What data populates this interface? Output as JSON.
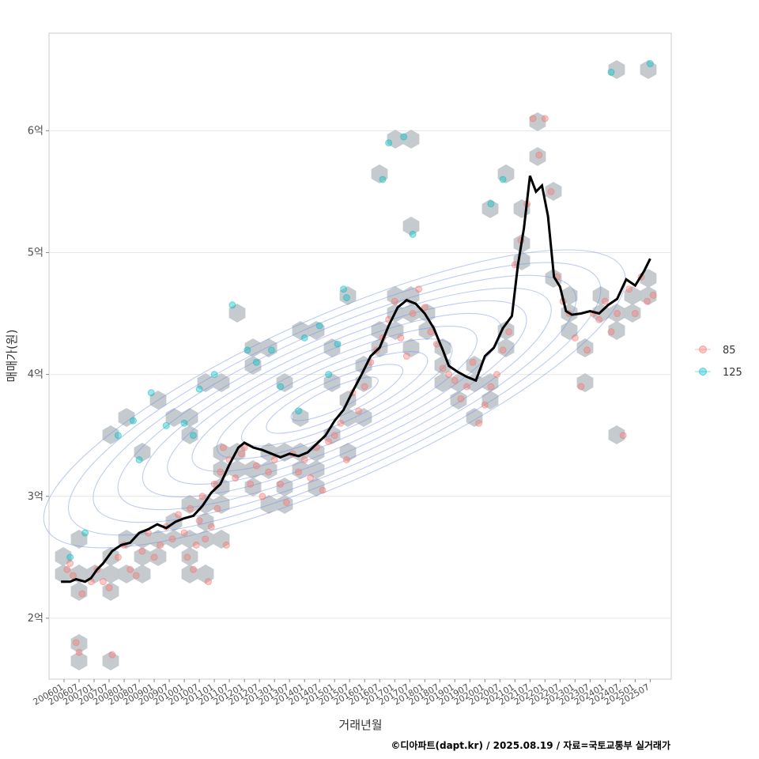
{
  "chart_data": {
    "type": "scatter",
    "xlabel": "거래년월",
    "ylabel": "매매가(원)",
    "caption": "©디아파트(dapt.kr) / 2025.08.19 / 자료=국토교통부 실거래가",
    "ylim": [
      1.5,
      6.8
    ],
    "xlim": [
      2005.5,
      2026.2
    ],
    "y_ticks": [
      {
        "v": 2,
        "label": "2억"
      },
      {
        "v": 3,
        "label": "3억"
      },
      {
        "v": 4,
        "label": "4억"
      },
      {
        "v": 5,
        "label": "5억"
      },
      {
        "v": 6,
        "label": "6억"
      }
    ],
    "x_ticks": [
      "200601",
      "200607",
      "200701",
      "200707",
      "200801",
      "200807",
      "200901",
      "200907",
      "201001",
      "201007",
      "201101",
      "201107",
      "201201",
      "201207",
      "201301",
      "201307",
      "201401",
      "201407",
      "201501",
      "201507",
      "201601",
      "201607",
      "201701",
      "201707",
      "201801",
      "201807",
      "201901",
      "201907",
      "202001",
      "202007",
      "202101",
      "202107",
      "202201",
      "202207",
      "202301",
      "202307",
      "202401",
      "202407",
      "202501",
      "202507"
    ],
    "grid": true,
    "legend_position": "right",
    "series": [
      {
        "name": "85",
        "color": "#F8766D",
        "points": [
          [
            2006.1,
            2.4
          ],
          [
            2006.2,
            2.45
          ],
          [
            2006.3,
            2.35
          ],
          [
            2006.4,
            1.8
          ],
          [
            2006.5,
            1.72
          ],
          [
            2006.6,
            2.2
          ],
          [
            2006.9,
            2.3
          ],
          [
            2007.1,
            2.4
          ],
          [
            2007.3,
            2.3
          ],
          [
            2007.5,
            2.25
          ],
          [
            2007.6,
            1.7
          ],
          [
            2007.8,
            2.5
          ],
          [
            2008.0,
            2.6
          ],
          [
            2008.2,
            2.4
          ],
          [
            2008.4,
            2.35
          ],
          [
            2008.6,
            2.55
          ],
          [
            2008.8,
            2.7
          ],
          [
            2009.0,
            2.5
          ],
          [
            2009.2,
            2.6
          ],
          [
            2009.4,
            2.75
          ],
          [
            2009.6,
            2.65
          ],
          [
            2009.8,
            2.85
          ],
          [
            2010.0,
            2.7
          ],
          [
            2010.1,
            2.5
          ],
          [
            2010.2,
            2.9
          ],
          [
            2010.3,
            2.4
          ],
          [
            2010.4,
            2.6
          ],
          [
            2010.5,
            2.8
          ],
          [
            2010.6,
            3.0
          ],
          [
            2010.7,
            2.65
          ],
          [
            2010.8,
            2.3
          ],
          [
            2010.9,
            2.75
          ],
          [
            2011.0,
            3.1
          ],
          [
            2011.1,
            2.9
          ],
          [
            2011.2,
            3.2
          ],
          [
            2011.3,
            3.4
          ],
          [
            2011.4,
            2.6
          ],
          [
            2011.5,
            3.3
          ],
          [
            2011.7,
            3.15
          ],
          [
            2011.9,
            3.35
          ],
          [
            2012.0,
            3.4
          ],
          [
            2012.2,
            3.1
          ],
          [
            2012.4,
            3.25
          ],
          [
            2012.6,
            3.0
          ],
          [
            2012.8,
            3.2
          ],
          [
            2013.0,
            3.3
          ],
          [
            2013.2,
            3.1
          ],
          [
            2013.4,
            2.95
          ],
          [
            2013.6,
            3.35
          ],
          [
            2013.8,
            3.2
          ],
          [
            2014.0,
            3.3
          ],
          [
            2014.2,
            3.15
          ],
          [
            2014.4,
            3.4
          ],
          [
            2014.6,
            3.05
          ],
          [
            2014.8,
            3.45
          ],
          [
            2015.0,
            3.5
          ],
          [
            2015.2,
            3.6
          ],
          [
            2015.4,
            3.3
          ],
          [
            2015.6,
            3.85
          ],
          [
            2015.8,
            3.7
          ],
          [
            2016.0,
            3.9
          ],
          [
            2016.2,
            4.1
          ],
          [
            2016.4,
            4.2
          ],
          [
            2016.6,
            4.3
          ],
          [
            2016.8,
            4.45
          ],
          [
            2017.0,
            4.6
          ],
          [
            2017.2,
            4.3
          ],
          [
            2017.4,
            4.15
          ],
          [
            2017.6,
            4.5
          ],
          [
            2017.8,
            4.7
          ],
          [
            2018.0,
            4.55
          ],
          [
            2018.2,
            4.35
          ],
          [
            2018.4,
            4.25
          ],
          [
            2018.6,
            4.05
          ],
          [
            2018.8,
            4.0
          ],
          [
            2019.0,
            3.95
          ],
          [
            2019.2,
            3.8
          ],
          [
            2019.4,
            3.9
          ],
          [
            2019.6,
            4.1
          ],
          [
            2019.8,
            3.6
          ],
          [
            2020.0,
            3.75
          ],
          [
            2020.2,
            3.9
          ],
          [
            2020.4,
            4.0
          ],
          [
            2020.6,
            4.2
          ],
          [
            2020.8,
            4.35
          ],
          [
            2021.0,
            4.9
          ],
          [
            2021.2,
            5.1
          ],
          [
            2021.4,
            5.4
          ],
          [
            2021.6,
            6.1
          ],
          [
            2021.8,
            5.8
          ],
          [
            2022.0,
            6.1
          ],
          [
            2022.2,
            5.5
          ],
          [
            2022.4,
            4.8
          ],
          [
            2022.6,
            4.6
          ],
          [
            2022.8,
            4.5
          ],
          [
            2023.0,
            4.3
          ],
          [
            2023.2,
            3.9
          ],
          [
            2023.4,
            4.2
          ],
          [
            2023.6,
            4.5
          ],
          [
            2023.8,
            4.45
          ],
          [
            2024.0,
            4.6
          ],
          [
            2024.2,
            4.35
          ],
          [
            2024.4,
            4.5
          ],
          [
            2024.6,
            3.5
          ],
          [
            2024.8,
            4.7
          ],
          [
            2025.0,
            4.5
          ],
          [
            2025.2,
            4.8
          ],
          [
            2025.4,
            4.6
          ],
          [
            2025.6,
            4.65
          ]
        ]
      },
      {
        "name": "125",
        "color": "#00BFC4",
        "points": [
          [
            2006.2,
            2.5
          ],
          [
            2006.7,
            2.7
          ],
          [
            2007.8,
            3.5
          ],
          [
            2008.3,
            3.62
          ],
          [
            2008.5,
            3.3
          ],
          [
            2008.9,
            3.85
          ],
          [
            2009.4,
            3.58
          ],
          [
            2010.0,
            3.6
          ],
          [
            2010.3,
            3.5
          ],
          [
            2010.5,
            3.88
          ],
          [
            2011.0,
            4.0
          ],
          [
            2011.6,
            4.57
          ],
          [
            2012.1,
            4.2
          ],
          [
            2012.4,
            4.1
          ],
          [
            2012.9,
            4.2
          ],
          [
            2013.2,
            3.9
          ],
          [
            2013.8,
            3.7
          ],
          [
            2014.0,
            4.3
          ],
          [
            2014.5,
            4.4
          ],
          [
            2014.8,
            4.0
          ],
          [
            2015.1,
            4.25
          ],
          [
            2015.3,
            4.7
          ],
          [
            2015.4,
            4.63
          ],
          [
            2016.6,
            5.6
          ],
          [
            2016.8,
            5.9
          ],
          [
            2017.3,
            5.95
          ],
          [
            2017.6,
            5.15
          ],
          [
            2020.2,
            5.4
          ],
          [
            2020.6,
            5.6
          ],
          [
            2024.2,
            6.48
          ],
          [
            2025.5,
            6.55
          ]
        ]
      }
    ],
    "trend": [
      [
        2005.9,
        2.3
      ],
      [
        2006.2,
        2.3
      ],
      [
        2006.4,
        2.32
      ],
      [
        2006.7,
        2.3
      ],
      [
        2006.9,
        2.33
      ],
      [
        2007.1,
        2.4
      ],
      [
        2007.3,
        2.45
      ],
      [
        2007.6,
        2.55
      ],
      [
        2007.9,
        2.6
      ],
      [
        2008.2,
        2.62
      ],
      [
        2008.5,
        2.7
      ],
      [
        2008.8,
        2.73
      ],
      [
        2009.1,
        2.77
      ],
      [
        2009.4,
        2.74
      ],
      [
        2009.7,
        2.79
      ],
      [
        2010.0,
        2.82
      ],
      [
        2010.3,
        2.84
      ],
      [
        2010.6,
        2.92
      ],
      [
        2010.9,
        3.03
      ],
      [
        2011.2,
        3.1
      ],
      [
        2011.5,
        3.26
      ],
      [
        2011.8,
        3.4
      ],
      [
        2012.0,
        3.44
      ],
      [
        2012.3,
        3.4
      ],
      [
        2012.6,
        3.38
      ],
      [
        2012.9,
        3.35
      ],
      [
        2013.2,
        3.32
      ],
      [
        2013.5,
        3.35
      ],
      [
        2013.8,
        3.33
      ],
      [
        2014.1,
        3.36
      ],
      [
        2014.4,
        3.43
      ],
      [
        2014.7,
        3.5
      ],
      [
        2015.0,
        3.62
      ],
      [
        2015.3,
        3.71
      ],
      [
        2015.6,
        3.86
      ],
      [
        2015.9,
        4.0
      ],
      [
        2016.2,
        4.15
      ],
      [
        2016.5,
        4.22
      ],
      [
        2016.8,
        4.4
      ],
      [
        2017.1,
        4.55
      ],
      [
        2017.4,
        4.61
      ],
      [
        2017.7,
        4.58
      ],
      [
        2018.0,
        4.5
      ],
      [
        2018.3,
        4.38
      ],
      [
        2018.6,
        4.2
      ],
      [
        2018.8,
        4.07
      ],
      [
        2019.1,
        4.02
      ],
      [
        2019.4,
        3.98
      ],
      [
        2019.7,
        3.95
      ],
      [
        2020.0,
        4.15
      ],
      [
        2020.3,
        4.22
      ],
      [
        2020.6,
        4.38
      ],
      [
        2020.9,
        4.48
      ],
      [
        2021.1,
        4.9
      ],
      [
        2021.3,
        5.2
      ],
      [
        2021.5,
        5.63
      ],
      [
        2021.7,
        5.5
      ],
      [
        2021.9,
        5.55
      ],
      [
        2022.1,
        5.3
      ],
      [
        2022.3,
        4.8
      ],
      [
        2022.5,
        4.72
      ],
      [
        2022.7,
        4.52
      ],
      [
        2022.9,
        4.49
      ],
      [
        2023.2,
        4.5
      ],
      [
        2023.5,
        4.52
      ],
      [
        2023.8,
        4.5
      ],
      [
        2024.1,
        4.57
      ],
      [
        2024.4,
        4.62
      ],
      [
        2024.7,
        4.78
      ],
      [
        2025.0,
        4.73
      ],
      [
        2025.3,
        4.85
      ],
      [
        2025.5,
        4.95
      ]
    ],
    "legend": [
      {
        "label": "85",
        "color": "#F8766D"
      },
      {
        "label": "125",
        "color": "#00BFC4"
      }
    ]
  }
}
